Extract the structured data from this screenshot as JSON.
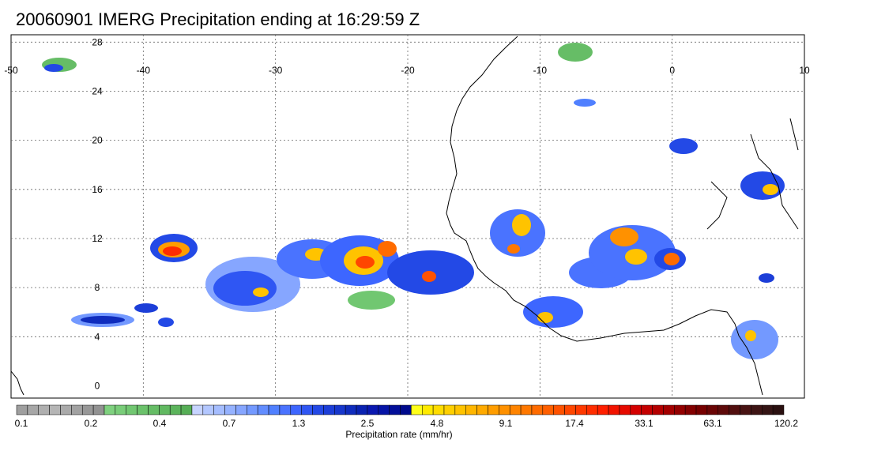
{
  "title": "20060901 IMERG Precipitation ending at 16:29:59 Z",
  "map": {
    "lon_range": [
      -50,
      10
    ],
    "lat_range": [
      -1,
      28.6
    ],
    "lon_ticks": [
      "-50",
      "-40",
      "-30",
      "-20",
      "-10",
      "0",
      "10"
    ],
    "lat_ticks": [
      "0",
      "4",
      "8",
      "12",
      "16",
      "20",
      "24",
      "28"
    ],
    "grid": "dotted",
    "background": "#ffffff",
    "coastline_color": "#000000"
  },
  "legend": {
    "title": "Precipitation rate (mm/hr)",
    "labels": [
      "0.1",
      "0.2",
      "0.4",
      "0.7",
      "1.3",
      "2.5",
      "4.8",
      "9.1",
      "17.4",
      "33.1",
      "63.1",
      "120.2"
    ],
    "colors": [
      "#9f9f9f",
      "#a7a7a7",
      "#afafaf",
      "#b5b5b5",
      "#aaaaaa",
      "#a2a2a2",
      "#989898",
      "#929292",
      "#7fd17f",
      "#79cd79",
      "#71c771",
      "#6bc26b",
      "#66bd66",
      "#61b961",
      "#5cb45c",
      "#56ae56",
      "#c7d4ff",
      "#b3c7ff",
      "#a5bdff",
      "#95b2ff",
      "#86a6ff",
      "#7399ff",
      "#628dff",
      "#5080ff",
      "#4a73ff",
      "#3d66ff",
      "#2f56f3",
      "#2349e6",
      "#1c3ed8",
      "#1737cc",
      "#0f2cbd",
      "#0a22b1",
      "#0a18b0",
      "#0614a6",
      "#030f99",
      "#000a8c",
      "#ffff1a",
      "#ffea00",
      "#ffdc00",
      "#ffcf00",
      "#ffc300",
      "#ffb600",
      "#ffaa00",
      "#ff9d00",
      "#ff9100",
      "#ff8400",
      "#ff7800",
      "#ff6b00",
      "#ff5f00",
      "#ff5200",
      "#ff4600",
      "#ff3900",
      "#ff2d00",
      "#ff1f00",
      "#f21300",
      "#e60a00",
      "#d40000",
      "#c40000",
      "#b40000",
      "#a30000",
      "#930000",
      "#830000",
      "#760000",
      "#6a0505",
      "#5e0a0a",
      "#520f0f",
      "#481313",
      "#3d1414",
      "#341414",
      "#2a1010"
    ]
  }
}
